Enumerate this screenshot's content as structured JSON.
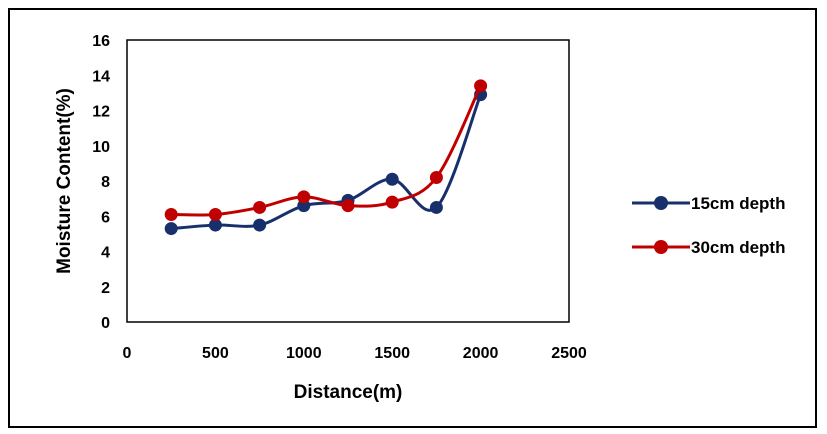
{
  "chart_data": {
    "type": "line",
    "smooth": true,
    "xlabel": "Distance(m)",
    "ylabel": "Moisture Content(%)",
    "xlim": [
      0,
      2500
    ],
    "ylim": [
      0,
      16
    ],
    "x_ticks": [
      0,
      500,
      1000,
      1500,
      2000,
      2500
    ],
    "y_ticks": [
      0,
      2,
      4,
      6,
      8,
      10,
      12,
      14,
      16
    ],
    "grid": false,
    "legend_position": "right",
    "series": [
      {
        "name": "15cm depth",
        "color": "#17306b",
        "x": [
          250,
          500,
          750,
          1000,
          1250,
          1500,
          1750,
          2000
        ],
        "y": [
          5.3,
          5.5,
          5.5,
          6.6,
          6.9,
          8.1,
          6.5,
          12.9
        ]
      },
      {
        "name": "30cm depth",
        "color": "#c00000",
        "x": [
          250,
          500,
          750,
          1000,
          1250,
          1500,
          1750,
          2000
        ],
        "y": [
          6.1,
          6.1,
          6.5,
          7.1,
          6.6,
          6.8,
          8.2,
          13.4
        ]
      }
    ]
  }
}
